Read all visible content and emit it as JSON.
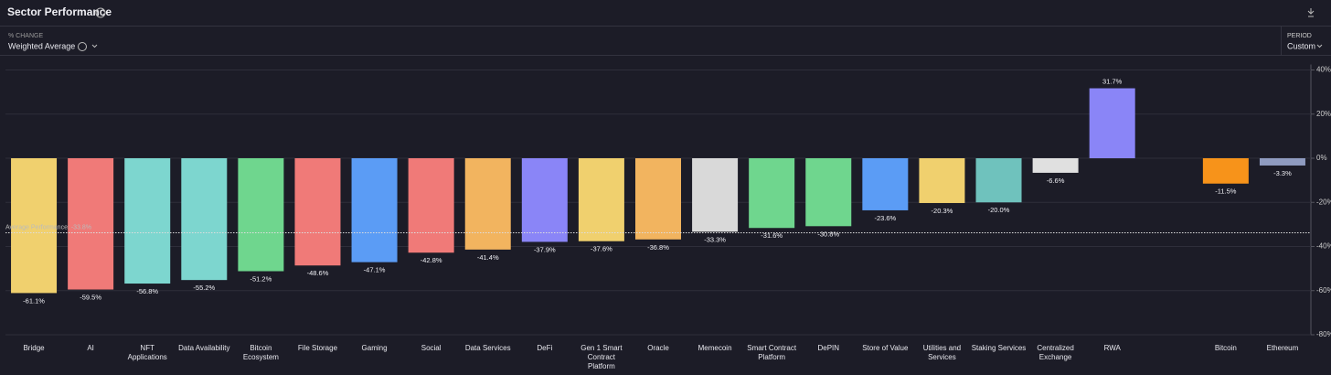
{
  "header": {
    "title": "Sector Performance",
    "metric_label": "% CHANGE",
    "metric_value": "Weighted Average",
    "period_label": "PERIOD",
    "period_value": "Custom"
  },
  "chart_data": {
    "type": "bar",
    "categories": [
      "Bridge",
      "AI",
      "NFT Applications",
      "Data Availability",
      "Bitcoin Ecosystem",
      "File Storage",
      "Gaming",
      "Social",
      "Data Services",
      "DeFi",
      "Gen 1 Smart Contract Platform",
      "Oracle",
      "Memecoin",
      "Smart Contract Platform",
      "DePIN",
      "Store of Value",
      "Utilities and Services",
      "Staking Services",
      "Centralized Exchange",
      "RWA",
      null,
      "Bitcoin",
      "Ethereum"
    ],
    "values": [
      -61.1,
      -59.5,
      -56.8,
      -55.2,
      -51.2,
      -48.6,
      -47.1,
      -42.8,
      -41.4,
      -37.9,
      -37.6,
      -36.8,
      -33.3,
      -31.6,
      -30.8,
      -23.6,
      -20.3,
      -20.0,
      -6.6,
      31.7,
      null,
      -11.5,
      -3.3
    ],
    "value_labels": [
      "-61.1%",
      "-59.5%",
      "-56.8%",
      "-55.2%",
      "-51.2%",
      "-48.6%",
      "-47.1%",
      "-42.8%",
      "-41.4%",
      "-37.9%",
      "-37.6%",
      "-36.8%",
      "-33.3%",
      "-31.6%",
      "-30.8%",
      "-23.6%",
      "-20.3%",
      "-20.0%",
      "-6.6%",
      "31.7%",
      null,
      "-11.5%",
      "-3.3%"
    ],
    "colors": [
      "#f0d06e",
      "#f07a78",
      "#7dd6cf",
      "#7dd6cf",
      "#6fd68e",
      "#f07a78",
      "#5b9cf5",
      "#f07a78",
      "#f2b45f",
      "#8a85f7",
      "#f0d06e",
      "#f2b45f",
      "#d9d9d9",
      "#6fd68e",
      "#6fd68e",
      "#5b9cf5",
      "#f0d06e",
      "#6fc2bd",
      "#e0e0e0",
      "#8a85f7",
      null,
      "#f7931a",
      "#8f9bc0"
    ],
    "ylim": [
      -80,
      40
    ],
    "yticks": [
      {
        "value": 40,
        "label": "40%"
      },
      {
        "value": 20,
        "label": "20%"
      },
      {
        "value": 0,
        "label": "0%"
      },
      {
        "value": -20,
        "label": "-20%"
      },
      {
        "value": -40,
        "label": "-40%"
      },
      {
        "value": -60,
        "label": "-60%"
      },
      {
        "value": -80,
        "label": "-80%"
      }
    ],
    "grid": true,
    "average": {
      "value": -33.8,
      "label": "Average Performance: -33.8%"
    }
  }
}
